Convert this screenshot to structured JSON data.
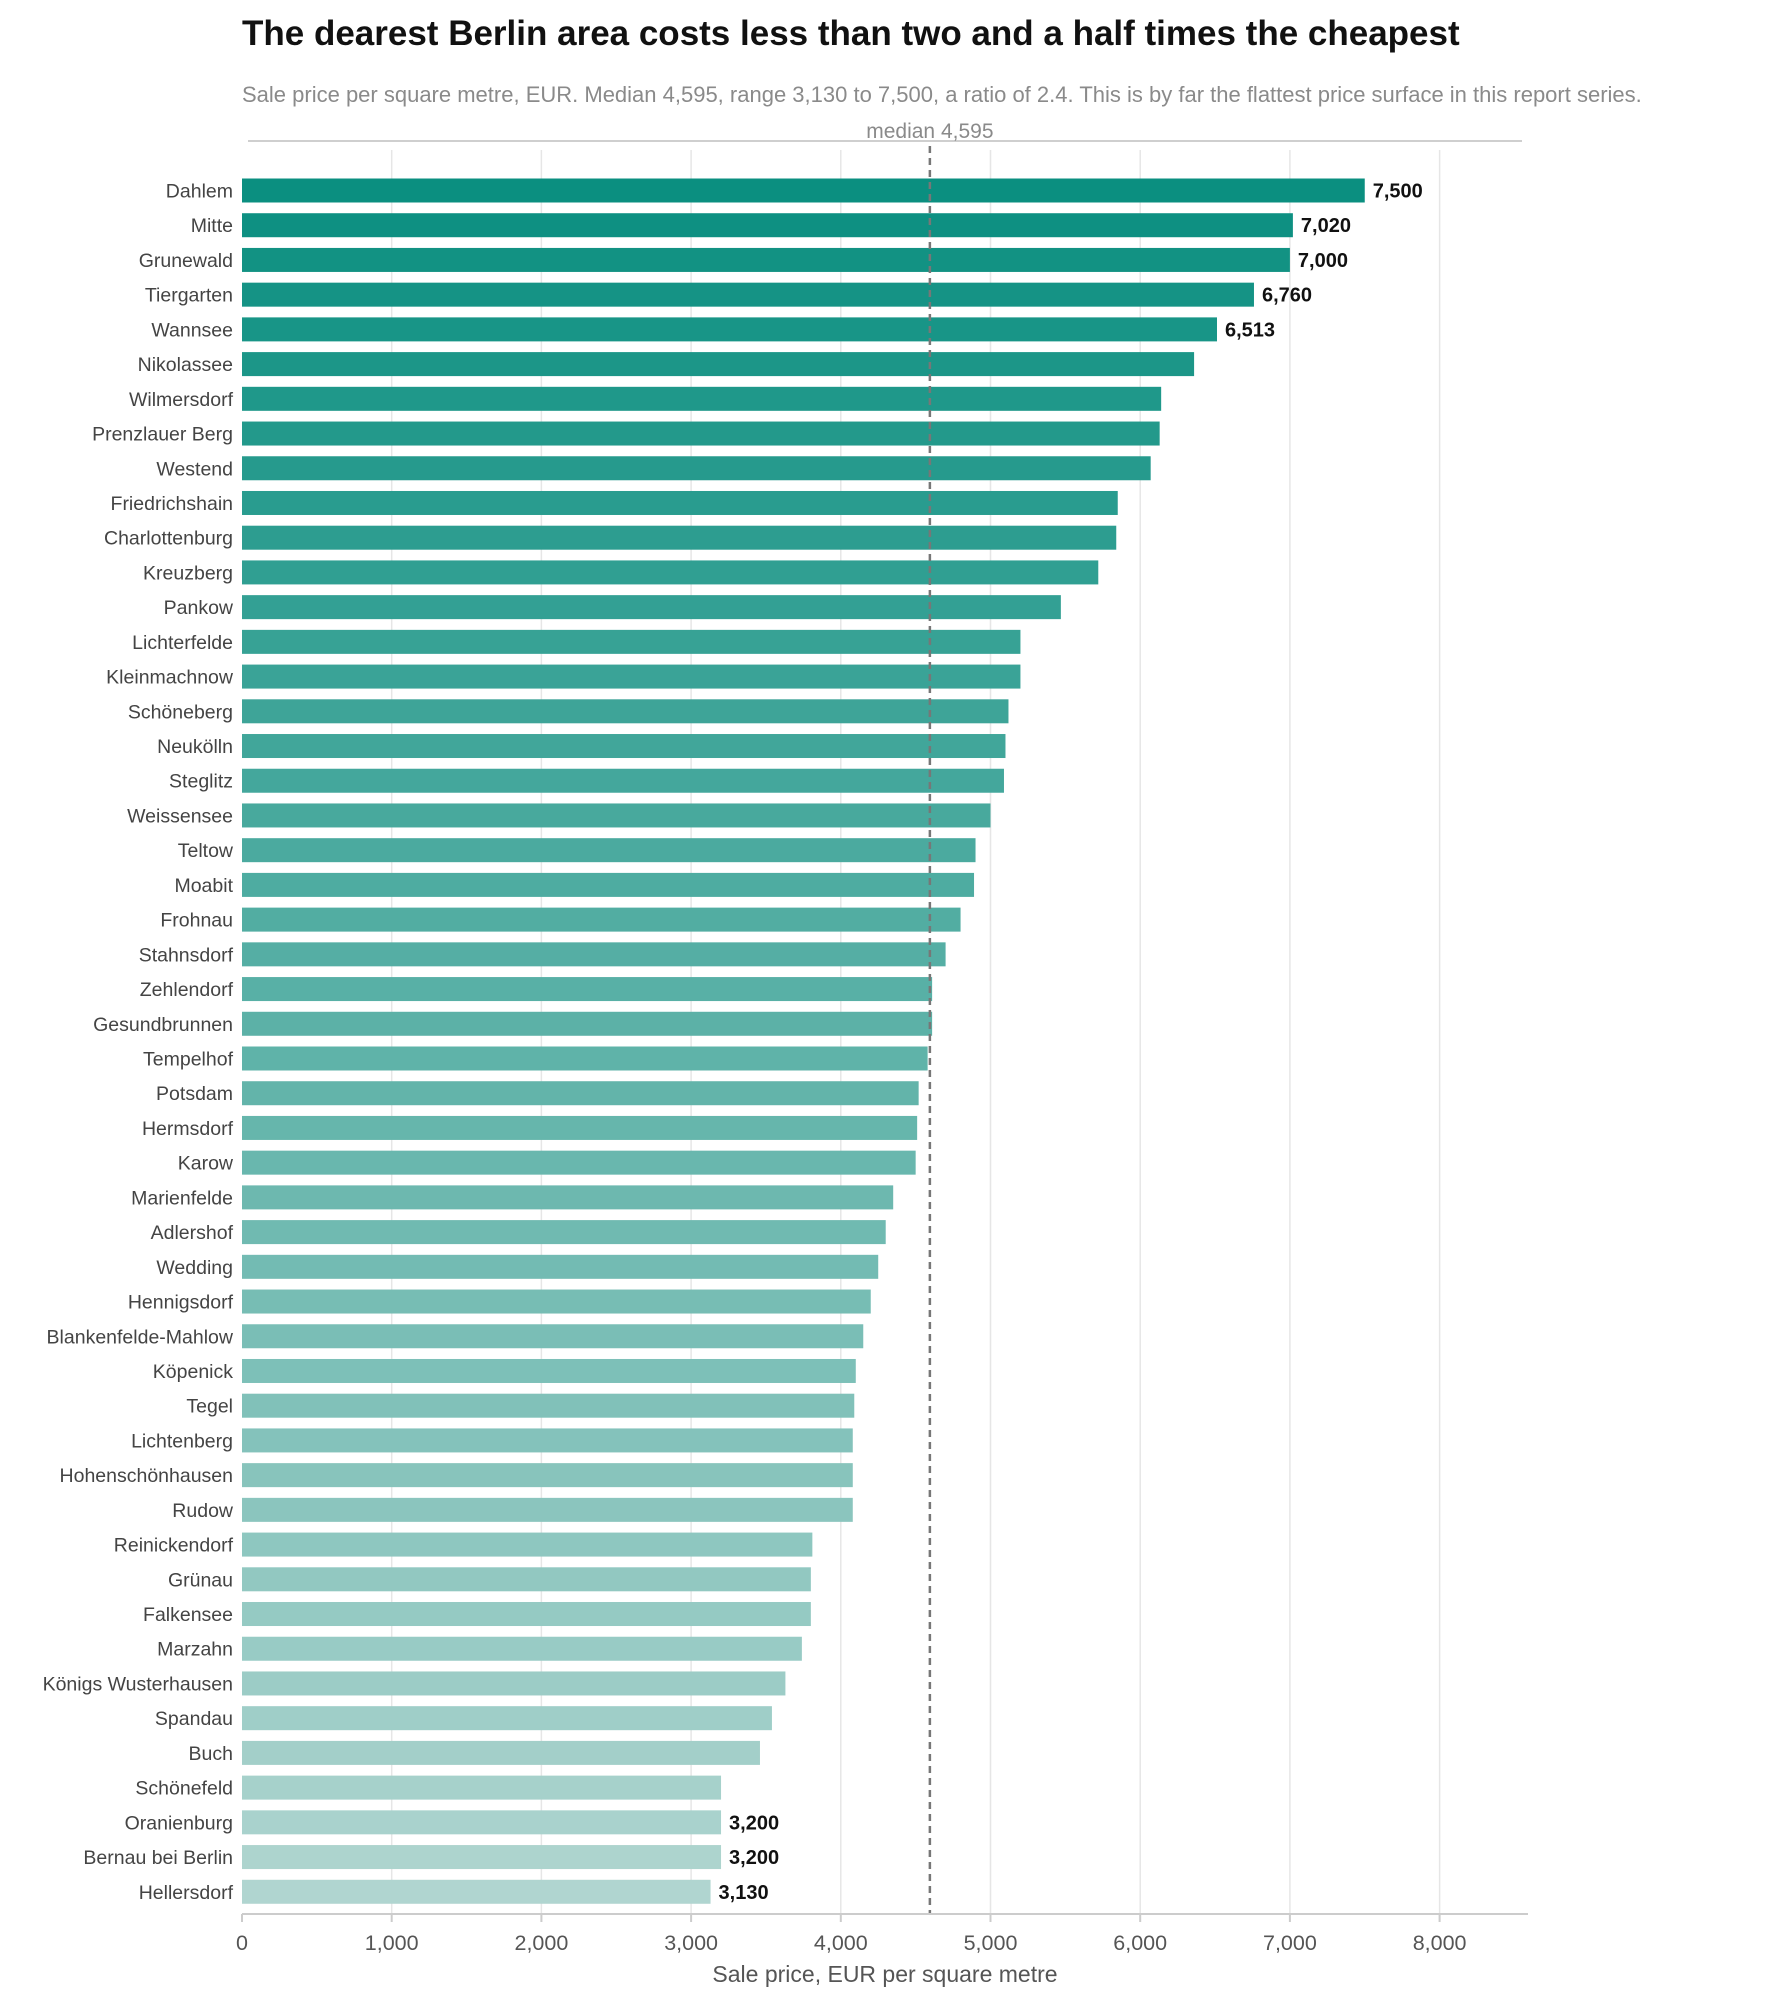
{
  "chart_data": {
    "type": "bar",
    "orientation": "horizontal",
    "title": "The dearest Berlin area costs less than two and a half times the cheapest",
    "subtitle": "Sale price per square metre, EUR. Median 4,595, range 3,130 to 7,500, a ratio of 2.4. This is by far the flattest price surface in this report series.",
    "xlabel": "Sale price, EUR per square metre",
    "ylabel": "",
    "xlim": [
      0,
      8500
    ],
    "xticks": [
      0,
      1000,
      2000,
      3000,
      4000,
      5000,
      6000,
      7000,
      8000
    ],
    "xtick_labels": [
      "0",
      "1,000",
      "2,000",
      "3,000",
      "4,000",
      "5,000",
      "6,000",
      "7,000",
      "8,000"
    ],
    "grid": true,
    "median": {
      "value": 4595,
      "label": "median 4,595"
    },
    "colors": {
      "high": "#0b8f80",
      "low": "#b0d5d0",
      "median_line": "#777777",
      "grid": "#e6e6e6"
    },
    "categories": [
      "Dahlem",
      "Mitte",
      "Grunewald",
      "Tiergarten",
      "Wannsee",
      "Nikolassee",
      "Wilmersdorf",
      "Prenzlauer Berg",
      "Westend",
      "Friedrichshain",
      "Charlottenburg",
      "Kreuzberg",
      "Pankow",
      "Lichterfelde",
      "Kleinmachnow",
      "Schöneberg",
      "Neukölln",
      "Steglitz",
      "Weissensee",
      "Teltow",
      "Moabit",
      "Frohnau",
      "Stahnsdorf",
      "Zehlendorf",
      "Gesundbrunnen",
      "Tempelhof",
      "Potsdam",
      "Hermsdorf",
      "Karow",
      "Marienfelde",
      "Adlershof",
      "Wedding",
      "Hennigsdorf",
      "Blankenfelde-Mahlow",
      "Köpenick",
      "Tegel",
      "Lichtenberg",
      "Hohenschönhausen",
      "Rudow",
      "Reinickendorf",
      "Grünau",
      "Falkensee",
      "Marzahn",
      "Königs Wusterhausen",
      "Spandau",
      "Buch",
      "Schönefeld",
      "Oranienburg",
      "Bernau bei Berlin",
      "Hellersdorf"
    ],
    "values": [
      7500,
      7020,
      7000,
      6760,
      6513,
      6360,
      6140,
      6130,
      6070,
      5850,
      5840,
      5720,
      5470,
      5200,
      5200,
      5120,
      5100,
      5090,
      5000,
      4900,
      4890,
      4800,
      4700,
      4610,
      4610,
      4580,
      4520,
      4510,
      4500,
      4350,
      4300,
      4250,
      4200,
      4150,
      4100,
      4090,
      4080,
      4080,
      4080,
      3810,
      3800,
      3800,
      3740,
      3630,
      3540,
      3460,
      3200,
      3200,
      3200,
      3130
    ],
    "data_labels": [
      {
        "index": 0,
        "text": "7,500"
      },
      {
        "index": 1,
        "text": "7,020"
      },
      {
        "index": 2,
        "text": "7,000"
      },
      {
        "index": 3,
        "text": "6,760"
      },
      {
        "index": 4,
        "text": "6,513"
      },
      {
        "index": 47,
        "text": "3,200"
      },
      {
        "index": 48,
        "text": "3,200"
      },
      {
        "index": 49,
        "text": "3,130"
      }
    ]
  }
}
